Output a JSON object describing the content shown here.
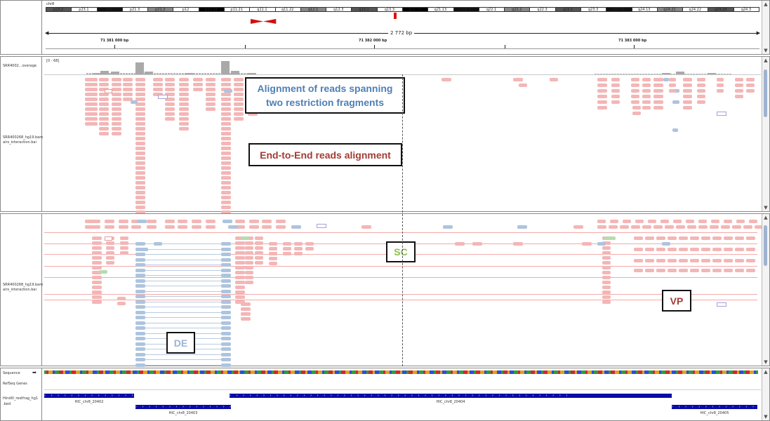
{
  "header": {
    "chromosome": "chr8",
    "bands": [
      "p23.2",
      "p23.1",
      "p22",
      "p21.3",
      "p21.2",
      "p12",
      "p11.23",
      "p11.21",
      "q11.1",
      "q11.22",
      "q12.1",
      "q12.3",
      "q13.1",
      "q13.3",
      "q21.11",
      "q21.13",
      "q21.3",
      "q22.1",
      "q22.2",
      "q22.3",
      "q23.1",
      "q23.3",
      "q24.11",
      "q24.13",
      "q24.21",
      "q24.22",
      "q24.23",
      "q24.3"
    ],
    "span": "2 772 bp",
    "ticks": [
      "71 381 000 bp",
      "71 382 000 bp",
      "71 383 000 bp"
    ]
  },
  "track1": {
    "coverage_name": "SRR4002...overage",
    "coverage_range": "[0 - 68]",
    "alignment_name_line1": "SRR400268_hg19.bam",
    "alignment_name_line2": "airs_interaction.bai"
  },
  "track2": {
    "alignment_name_line1": "SRR400268_hg19.bam",
    "alignment_name_line2": "airs_interaction.bai"
  },
  "bottom": {
    "sequence_label": "Sequence",
    "refseq_label": "RefSeq Genes",
    "hindiii_label_line1": "HindIII_restfrag_hg1",
    "hindiii_label_line2": ".bed",
    "fragments": [
      "HIC_chr8_20402",
      "HIC_chr8_20403",
      "HIC_chr8_20404",
      "HIC_chr8_20405"
    ]
  },
  "callouts": {
    "spanning_line1": "Alignment of reads spanning",
    "spanning_line2": "two restriction fragments",
    "end_to_end": "End-to-End reads alignment",
    "sc": "SC",
    "vp": "VP",
    "de": "DE"
  },
  "colors": {
    "pink_read": "#f4b6b6",
    "blue_read": "#adc4de",
    "callout_blue": "#4f7fb5",
    "callout_red": "#a33b34",
    "callout_green": "#8cc04a",
    "gene_blue": "#0a0aa8"
  }
}
